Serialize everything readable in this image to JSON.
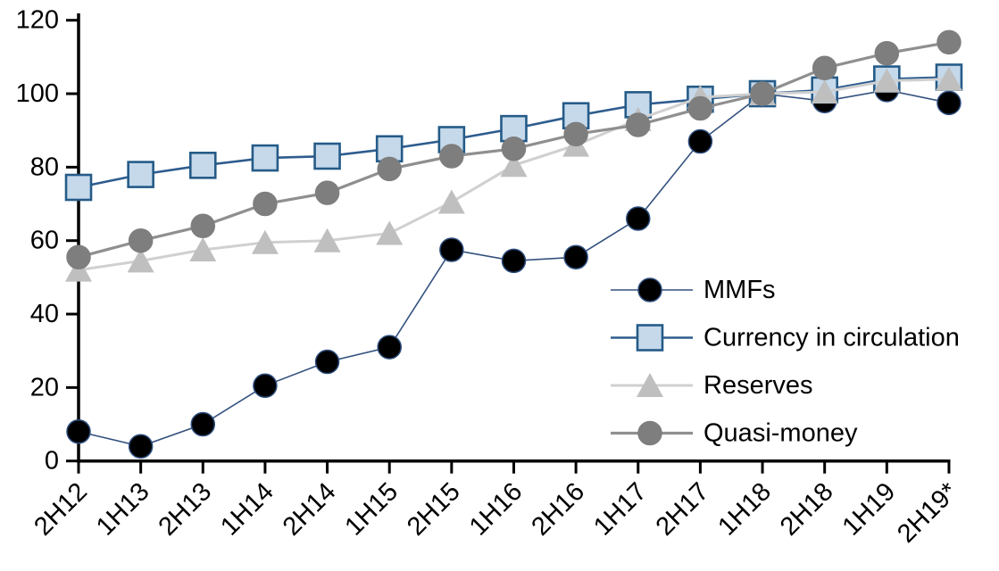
{
  "chart_data": {
    "type": "line",
    "title": "",
    "categories": [
      "2H12",
      "1H13",
      "2H13",
      "1H14",
      "2H14",
      "1H15",
      "2H15",
      "1H16",
      "2H16",
      "1H17",
      "2H17",
      "1H18",
      "2H18",
      "1H19",
      "2H19*"
    ],
    "series": [
      {
        "name": "MMFs",
        "marker": "circle",
        "marker_color": "#000000",
        "marker_border": "#2c4d7e",
        "line_color": "#33517e",
        "line_width": 1.6,
        "values": [
          8,
          4,
          10,
          20.5,
          27,
          31,
          57.5,
          54.5,
          55.5,
          66,
          87,
          100,
          98,
          101,
          97.5
        ]
      },
      {
        "name": "Currency in circulation",
        "marker": "square",
        "marker_color": "#c5d9eb",
        "marker_border": "#255b88",
        "line_color": "#2e5c8e",
        "line_width": 2.6,
        "values": [
          74.5,
          78,
          80.5,
          82.5,
          83,
          85,
          87.5,
          90.5,
          94,
          97,
          98.5,
          100,
          101,
          104,
          104.5
        ]
      },
      {
        "name": "Reserves",
        "marker": "triangle",
        "marker_color": "#bfbfbf",
        "marker_border": "#bfbfbf",
        "line_color": "#d0d0d0",
        "line_width": 3,
        "values": [
          52,
          54.5,
          57.5,
          59.5,
          60,
          62,
          70.5,
          80.5,
          86,
          93,
          99,
          100,
          100.5,
          103.5,
          104
        ]
      },
      {
        "name": "Quasi-money",
        "marker": "circle",
        "marker_color": "#7e7e7e",
        "marker_border": "#7e7e7e",
        "line_color": "#8f8f8f",
        "line_width": 3.2,
        "values": [
          55.5,
          60,
          64,
          70,
          73,
          79.5,
          83,
          85,
          89,
          91.5,
          96,
          100,
          107,
          111,
          114
        ]
      }
    ],
    "y_axis": {
      "min": 0,
      "max": 120,
      "step": 20,
      "ticks": [
        0,
        20,
        40,
        60,
        80,
        100,
        120
      ]
    },
    "x_axis": {
      "label_rotation_deg": -45
    },
    "legend": {
      "position": "middle-right",
      "entries": [
        "MMFs",
        "Currency in circulation",
        "Reserves",
        "Quasi-money"
      ]
    },
    "grid": false,
    "axis_color": "#000000",
    "text_color": "#000000"
  }
}
